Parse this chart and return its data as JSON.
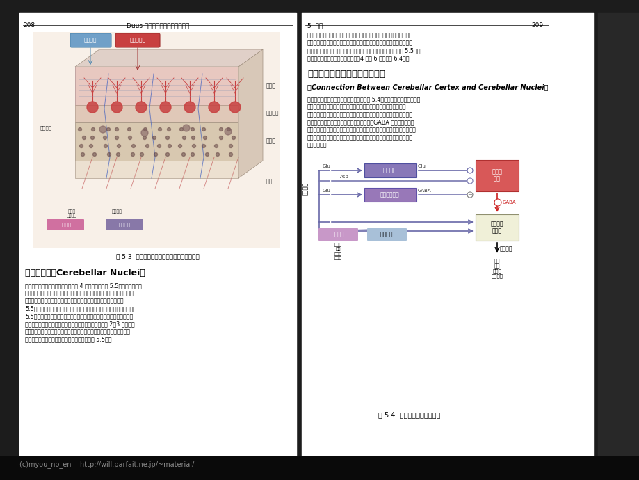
{
  "bg_color": "#1c1c1c",
  "page_bg": "#ffffff",
  "footer_text": "(c)myou_no_en    http://will.parfait.ne.jp/~material/",
  "header_left_num": "208",
  "header_left_title": "Duus 神经系统疾病确定位诊断学",
  "header_right_chapter": "5  小脑",
  "header_right_num": "209",
  "fig53_caption": "图 5.3  小脑皮质结构及其传入性和传出性联系",
  "section1_title": "小脑神经核（Cerebellar Nuclei）",
  "section2_title": "小脑皮质和小脑神经核团的联系",
  "section2_subtitle": "（Connection Between Cerebellar Certex and Cerebellar Nuclei）",
  "right_para1_lines": [
    "　　小脑半球髓质内最外侧有最大的小脑神经核团，即齿状核，其传入冲",
    "动主要来源于小脑半球（大脑小脑）皮质，极少量来源于蚀劳区皮质，其",
    "传出冲动经小脑上脚投射至对侧红核及丘脑（丘脑腹外侧核）（图 5.5），",
    "再换元后投射至运动性大脑皮质区（4 区和 6 区）（图 6.4）。"
  ],
  "right_para2_lines": [
    "　　小脑皮质内神经元交接具有一模式（图 5.4），所有小脑传入冲动均终",
    "止于小脑皮质或者通过侧支终止于小脑神经核。在皮质内将传入性信",
    "息经多个复杂神经元进行交换处理，然后将传出性冲动最后聚集到莒领野",
    "细胞。莒领野细胞将处理后的结果以抑制性（GABA 达度）冲动的形",
    "式微绵传导至小脑神经核。原始（来源于莒领野细胞或皮质的）信息和调整",
    "后的信息在小脑神经核团内被综合处理之后形成小脑传出冲动继续传导至",
    "小脑投射区。"
  ],
  "left_para1_lines": [
    "　　每一侧小脑半球的横断面上可见 4 个神经核团（图 5.5）。第四脑室顶",
    "高内侧为顶核，其传入纤维主要来源于（前庭小脑）奶小脑小节叶的莒领野",
    "细胞，其传出纤维直达前庭神经核（顶核廷边束或小脑延髓束）（图",
    "5.5）或者交叉至对侧小脑后再进入网状结构或前庭神经核（麦状核）（图",
    "5.5）或者交叉至对侧小脑后再进入网状结构或前庭神经核（麦状核）。",
    "　　顶核的栋外侧为两个较小的核团：球状核（常常分为 2～3 个小球状",
    "核）及栖核。这两个核团接受蚀劳区皮质的传入冲动，部分还接受舆部皮",
    "质的传入冲动，其传出冲动投射至对侧红核（图 5.5）。"
  ],
  "fig54_caption": "图 5.4  小脑内神经元转换模式",
  "granule_label": "颗粒细胞",
  "inhibitory_label": "抑制性神经元",
  "purkinje_label": "莒领野\n细胞",
  "nucleus_label": "小脑核团\n神经元",
  "input_label": "小脑传入",
  "output_label": "小脑传出",
  "moss_label": "苔颅纤维",
  "climb_label": "攀行纤维",
  "sources_label": "橔脑核\n脊髓\n前庭核\n橄橄体",
  "targets_label": "丘脑\n红核\n前庭核\n网状结构",
  "granule_color": "#8878b8",
  "inhibitory_color": "#9878b8",
  "purkinje_color": "#d85858",
  "nucleus_color": "#f0f0d8",
  "moss_color": "#c898c8",
  "climb_color": "#a8c0d8",
  "arrow_color": "#6868a8",
  "arrow_color2": "#7878b0"
}
